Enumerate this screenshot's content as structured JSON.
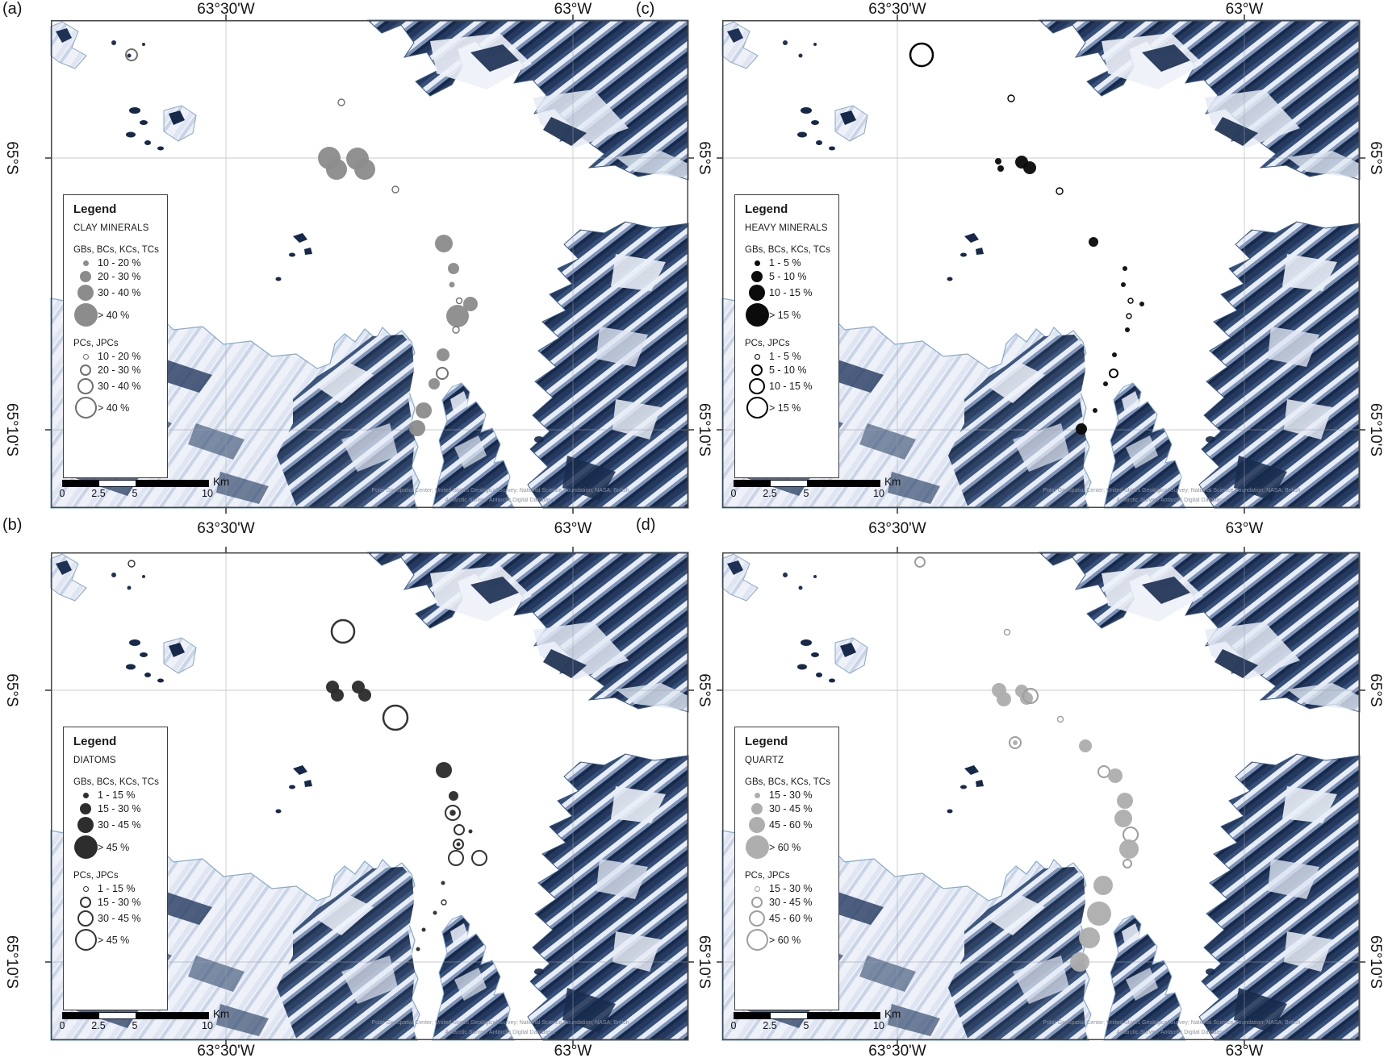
{
  "header": {
    "lon_labels": [
      "63°30'W",
      "63°W"
    ],
    "lat_labels": [
      "65°S",
      "65°10'S"
    ]
  },
  "legend_title": "Legend",
  "scalebar": {
    "ticks": [
      "0",
      "2.5",
      "5",
      "10"
    ],
    "unit": "Km"
  },
  "attribution": {
    "line1": "Polar Geospatial Center; United States Geological Survey; National Science Foundation; NASA; British",
    "line2": "Antarctic Survey; Antarctic Digital Database;"
  },
  "panels": [
    {
      "id": "a",
      "letter": "(a)",
      "mineral": "CLAY MINERALS",
      "group1": "GBs, BCs, KCs, TCs",
      "group2": "PCs, JPCs",
      "g1": [
        "10 - 20 %",
        "20 - 30 %",
        "30 - 40 %",
        "> 40 %"
      ],
      "g2": [
        "10 - 20 %",
        "20 - 30 %",
        "30 - 40 %",
        "> 40 %"
      ],
      "filled_color": "#8c8c8c",
      "open_color": "#707070",
      "points": [
        [
          100,
          43,
          7,
          "o"
        ],
        [
          360,
          102,
          4,
          "o"
        ],
        [
          345,
          171,
          14,
          "f"
        ],
        [
          354,
          185,
          13,
          "f"
        ],
        [
          380,
          172,
          14,
          "f"
        ],
        [
          389,
          185,
          13,
          "f"
        ],
        [
          427,
          210,
          4,
          "o"
        ],
        [
          487,
          277,
          11,
          "f"
        ],
        [
          499,
          308,
          7,
          "f"
        ],
        [
          497,
          328,
          3.5,
          "f"
        ],
        [
          506,
          348,
          3.5,
          "o"
        ],
        [
          520,
          352,
          9,
          "f"
        ],
        [
          504,
          367,
          14,
          "f"
        ],
        [
          502,
          384,
          4,
          "o"
        ],
        [
          486,
          415,
          8,
          "f"
        ],
        [
          485,
          438,
          7,
          "o"
        ],
        [
          475,
          451,
          7,
          "f"
        ],
        [
          462,
          484,
          10,
          "f"
        ],
        [
          454,
          506,
          10,
          "f"
        ]
      ]
    },
    {
      "id": "b",
      "letter": "(b)",
      "mineral": "DIATOMS",
      "group1": "GBs, BCs, KCs, TCs",
      "group2": "PCs, JPCs",
      "g1": [
        "1 - 15 %",
        "15 - 30 %",
        "30 - 45 %",
        "> 45 %"
      ],
      "g2": [
        "1 - 15 %",
        "15 - 30 %",
        "30 - 45 %",
        "> 45 %"
      ],
      "filled_color": "#2d2d2d",
      "open_color": "#333333",
      "points": [
        [
          100,
          14,
          4,
          "o"
        ],
        [
          362,
          98,
          14,
          "o"
        ],
        [
          349,
          167,
          8,
          "f"
        ],
        [
          355,
          177,
          8,
          "f"
        ],
        [
          381,
          167,
          8,
          "f"
        ],
        [
          389,
          177,
          8,
          "f"
        ],
        [
          427,
          205,
          15,
          "o"
        ],
        [
          487,
          270,
          10,
          "f"
        ],
        [
          499,
          302,
          6,
          "f"
        ],
        [
          498,
          323,
          9,
          "d"
        ],
        [
          506,
          344,
          6,
          "o"
        ],
        [
          520,
          346,
          2.5,
          "f"
        ],
        [
          505,
          362,
          6,
          "d"
        ],
        [
          502,
          379,
          9,
          "o"
        ],
        [
          531,
          379,
          9,
          "o"
        ],
        [
          486,
          410,
          2.5,
          "f"
        ],
        [
          487,
          434,
          3,
          "o"
        ],
        [
          476,
          447,
          2.5,
          "f"
        ],
        [
          462,
          468,
          2.5,
          "f"
        ],
        [
          455,
          492,
          2.5,
          "f"
        ]
      ]
    },
    {
      "id": "c",
      "letter": "(c)",
      "mineral": "HEAVY MINERALS",
      "group1": "GBs, BCs, KCs, TCs",
      "group2": "PCs, JPCs",
      "g1": [
        "1 - 5 %",
        "5 - 10 %",
        "10 - 15 %",
        "> 15 %"
      ],
      "g2": [
        "1 - 5 %",
        "5 - 10 %",
        "10 - 15 %",
        "> 15 %"
      ],
      "filled_color": "#0b0b0b",
      "open_color": "#000000",
      "points": [
        [
          247,
          43,
          14,
          "o"
        ],
        [
          358,
          97,
          4,
          "o"
        ],
        [
          342,
          175,
          4,
          "f"
        ],
        [
          345,
          184,
          4,
          "f"
        ],
        [
          371,
          176,
          8,
          "f"
        ],
        [
          381,
          183,
          8,
          "f"
        ],
        [
          418,
          212,
          4,
          "o"
        ],
        [
          460,
          275,
          6,
          "f"
        ],
        [
          499,
          308,
          3,
          "f"
        ],
        [
          497,
          328,
          3,
          "f"
        ],
        [
          506,
          348,
          3,
          "o"
        ],
        [
          520,
          352,
          3,
          "f"
        ],
        [
          504,
          367,
          3,
          "o"
        ],
        [
          502,
          384,
          3,
          "f"
        ],
        [
          486,
          415,
          3,
          "f"
        ],
        [
          485,
          438,
          5,
          "o"
        ],
        [
          475,
          451,
          3,
          "f"
        ],
        [
          462,
          484,
          3,
          "f"
        ],
        [
          445,
          507,
          7,
          "f"
        ]
      ]
    },
    {
      "id": "d",
      "letter": "(d)",
      "mineral": "QUARTZ",
      "group1": "GBs, BCs, KCs, TCs",
      "group2": "PCs, JPCs",
      "g1": [
        "15 - 30 %",
        "30 - 45 %",
        "45 - 60 %",
        "> 60 %"
      ],
      "g2": [
        "15 - 30 %",
        "30 - 45 %",
        "45 - 60 %",
        "> 60 %"
      ],
      "filled_color": "#aeaeae",
      "open_color": "#9e9e9e",
      "points": [
        [
          245,
          12,
          6,
          "o"
        ],
        [
          353,
          99,
          3.5,
          "o"
        ],
        [
          343,
          171,
          9,
          "f"
        ],
        [
          349,
          182,
          9,
          "f"
        ],
        [
          371,
          172,
          8,
          "f"
        ],
        [
          377,
          181,
          8,
          "f"
        ],
        [
          382,
          178,
          9,
          "o"
        ],
        [
          419,
          207,
          3.5,
          "o"
        ],
        [
          363,
          236,
          7,
          "d"
        ],
        [
          450,
          240,
          8,
          "f"
        ],
        [
          473,
          272,
          7,
          "o"
        ],
        [
          487,
          277,
          9,
          "f"
        ],
        [
          499,
          308,
          10,
          "f"
        ],
        [
          497,
          330,
          11,
          "f"
        ],
        [
          506,
          350,
          9,
          "o"
        ],
        [
          504,
          368,
          12,
          "f"
        ],
        [
          502,
          386,
          5,
          "o"
        ],
        [
          472,
          413,
          12,
          "f"
        ],
        [
          467,
          448,
          15,
          "f"
        ],
        [
          455,
          478,
          13,
          "f"
        ],
        [
          443,
          508,
          12,
          "f"
        ]
      ]
    }
  ]
}
